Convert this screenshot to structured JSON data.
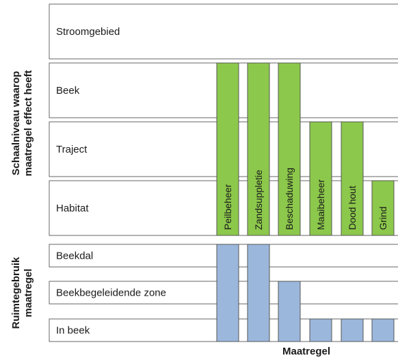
{
  "axis_titles": {
    "scale": [
      "Schaalniveau waarop",
      "maatregel effect heeft"
    ],
    "space": [
      "Ruimtegebruik",
      "maatregel"
    ],
    "x": "Maatregel"
  },
  "scale_levels": [
    "Stroomgebied",
    "Beek",
    "Traject",
    "Habitat"
  ],
  "space_levels": [
    "Beekdal",
    "Beekbegeleidende zone",
    "In beek"
  ],
  "colors": {
    "scale_bar": "#8cc84b",
    "space_bar": "#9bb7dc",
    "bar_stroke": "#555555",
    "row_stroke": "#666666"
  },
  "chart_data": {
    "type": "bar",
    "categories": [
      "Peilbeheer",
      "Zandsuppletie",
      "Beschaduwing",
      "Maaibeheer",
      "Dood hout",
      "Grind"
    ],
    "scale_top_level": [
      "Beek",
      "Beek",
      "Beek",
      "Traject",
      "Traject",
      "Habitat"
    ],
    "space_top_level": [
      "Beekdal",
      "Beekdal",
      "Beekbegeleidende zone",
      "In beek",
      "In beek",
      "In beek"
    ],
    "xlabel": "Maatregel"
  }
}
